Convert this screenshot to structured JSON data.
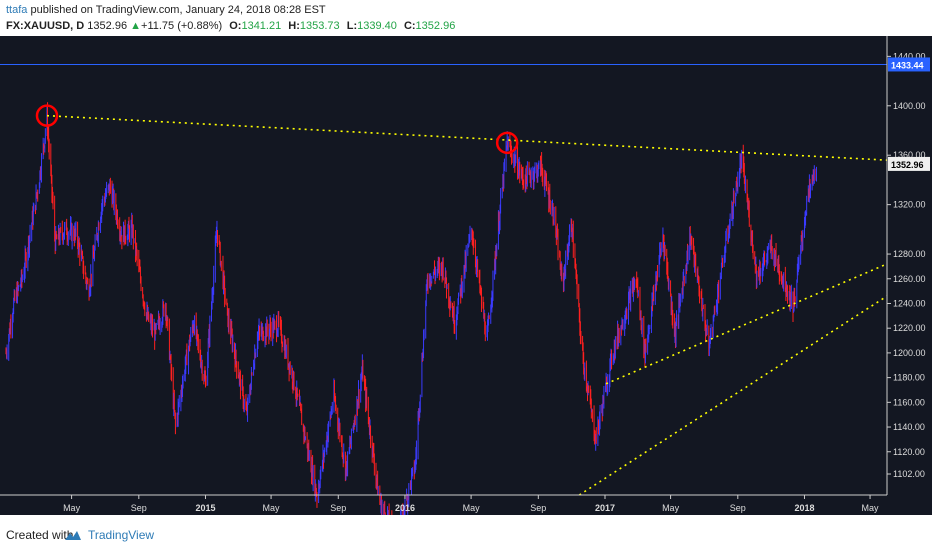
{
  "header": {
    "author": "ttafa",
    "published_text": "published on TradingView.com, January 24, 2018 08:28 EST",
    "symbol": "FX:XAUUSD, D",
    "last": "1352.96",
    "change_arrow": "▲",
    "change": "+11.75 (+0.88%)",
    "open_label": "O:",
    "open": "1341.21",
    "high_label": "H:",
    "high": "1353.73",
    "low_label": "L:",
    "low": "1339.40",
    "close_label": "C:",
    "close": "1352.96"
  },
  "footer": {
    "created_text": "Created with",
    "brand": "TradingView",
    "logo_icon": "tradingview-cloud-icon"
  },
  "colors": {
    "background": "#131722",
    "bar_up": "#3b3bff",
    "bar_down": "#ff2020",
    "trendline": "#ffff00",
    "marker_circle": "#ff0000",
    "hline": "#2962ff"
  },
  "chart_data": {
    "type": "ohlc",
    "title": "",
    "xlabel": "",
    "ylabel": "",
    "ylim": [
      1085,
      1450
    ],
    "x_tick_labels": [
      "May",
      "Sep",
      "2015",
      "May",
      "Sep",
      "2016",
      "May",
      "Sep",
      "2017",
      "May",
      "Sep",
      "2018",
      "May"
    ],
    "x_tick_dates": [
      "2014-05-01",
      "2014-09-01",
      "2015-01-01",
      "2015-05-01",
      "2015-09-01",
      "2016-01-01",
      "2016-05-01",
      "2016-09-01",
      "2017-01-01",
      "2017-05-01",
      "2017-09-01",
      "2018-01-01",
      "2018-05-01"
    ],
    "y_ticks": [
      1102,
      1120,
      1140,
      1160,
      1180,
      1200,
      1220,
      1240,
      1260,
      1280,
      1320,
      1360,
      1400,
      1440
    ],
    "current_price_label": "1352.96",
    "horizontal_level_label": "1433.44",
    "horizontal_level": 1433.44,
    "grid": false,
    "price_path": [
      [
        "2014-01-01",
        1200
      ],
      [
        "2014-01-15",
        1240
      ],
      [
        "2014-02-01",
        1262
      ],
      [
        "2014-02-15",
        1300
      ],
      [
        "2014-03-01",
        1335
      ],
      [
        "2014-03-17",
        1390
      ],
      [
        "2014-04-01",
        1290
      ],
      [
        "2014-04-20",
        1300
      ],
      [
        "2014-05-10",
        1295
      ],
      [
        "2014-06-01",
        1250
      ],
      [
        "2014-06-25",
        1320
      ],
      [
        "2014-07-10",
        1335
      ],
      [
        "2014-08-01",
        1295
      ],
      [
        "2014-08-20",
        1300
      ],
      [
        "2014-09-15",
        1230
      ],
      [
        "2014-10-01",
        1215
      ],
      [
        "2014-10-20",
        1240
      ],
      [
        "2014-11-07",
        1140
      ],
      [
        "2014-11-25",
        1190
      ],
      [
        "2014-12-10",
        1225
      ],
      [
        "2015-01-01",
        1175
      ],
      [
        "2015-01-22",
        1300
      ],
      [
        "2015-02-10",
        1230
      ],
      [
        "2015-03-17",
        1150
      ],
      [
        "2015-04-06",
        1215
      ],
      [
        "2015-05-15",
        1222
      ],
      [
        "2015-06-10",
        1180
      ],
      [
        "2015-07-24",
        1085
      ],
      [
        "2015-08-24",
        1165
      ],
      [
        "2015-09-15",
        1105
      ],
      [
        "2015-10-15",
        1185
      ],
      [
        "2015-11-15",
        1080
      ],
      [
        "2015-12-17",
        1050
      ],
      [
        "2016-01-20",
        1110
      ],
      [
        "2016-02-11",
        1260
      ],
      [
        "2016-03-10",
        1270
      ],
      [
        "2016-04-01",
        1225
      ],
      [
        "2016-05-02",
        1300
      ],
      [
        "2016-05-30",
        1210
      ],
      [
        "2016-06-24",
        1320
      ],
      [
        "2016-07-06",
        1370
      ],
      [
        "2016-08-05",
        1340
      ],
      [
        "2016-09-06",
        1350
      ],
      [
        "2016-09-30",
        1310
      ],
      [
        "2016-10-15",
        1255
      ],
      [
        "2016-11-01",
        1305
      ],
      [
        "2016-11-20",
        1200
      ],
      [
        "2016-12-15",
        1130
      ],
      [
        "2017-01-15",
        1200
      ],
      [
        "2017-02-27",
        1260
      ],
      [
        "2017-03-15",
        1200
      ],
      [
        "2017-04-17",
        1295
      ],
      [
        "2017-05-09",
        1215
      ],
      [
        "2017-06-06",
        1295
      ],
      [
        "2017-07-10",
        1205
      ],
      [
        "2017-08-11",
        1290
      ],
      [
        "2017-09-08",
        1357
      ],
      [
        "2017-10-06",
        1262
      ],
      [
        "2017-11-01",
        1285
      ],
      [
        "2017-12-12",
        1238
      ],
      [
        "2018-01-05",
        1322
      ],
      [
        "2018-01-24",
        1352.96
      ]
    ],
    "trendlines": [
      {
        "name": "resistance",
        "points": [
          [
            "2014-03-17",
            1392
          ],
          [
            "2018-06-01",
            1356
          ]
        ]
      },
      {
        "name": "support-upper",
        "points": [
          [
            "2017-01-03",
            1175
          ],
          [
            "2018-06-01",
            1272
          ]
        ]
      },
      {
        "name": "support-lower",
        "points": [
          [
            "2016-11-15",
            1085
          ],
          [
            "2018-06-01",
            1246
          ]
        ]
      }
    ],
    "markers": [
      {
        "name": "peak-2014",
        "date": "2014-03-17",
        "value": 1392
      },
      {
        "name": "peak-2016",
        "date": "2016-07-06",
        "value": 1370
      }
    ]
  }
}
